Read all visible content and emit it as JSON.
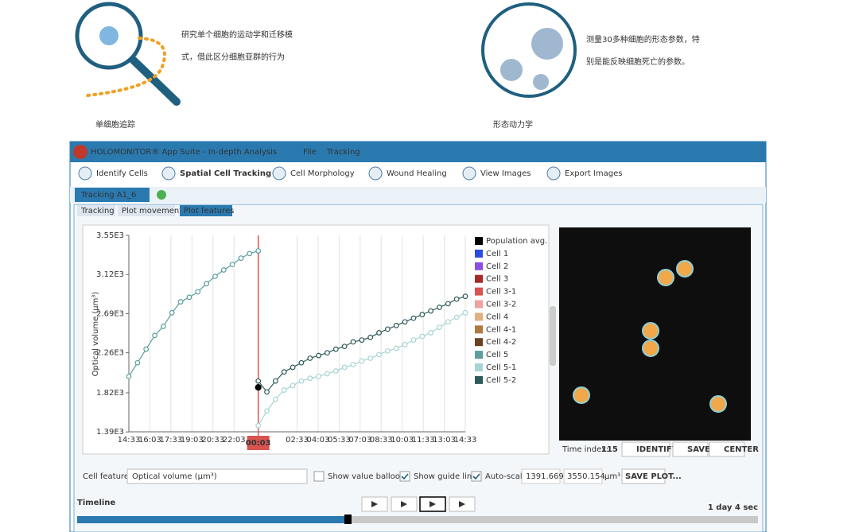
{
  "intro": {
    "left_text": [
      "研究单个细胞的运动学和迁移模",
      "式，借此区分细胞亚群的行为"
    ],
    "left_label": "单细胞追踪",
    "right_text": [
      "测量30多种细胞的形态参数，特",
      "别是能反映细胞死亡的参数。"
    ],
    "right_label": "形态动力学"
  },
  "app": {
    "title": "HOLOMONITOR® App Suite - In-depth Analysis",
    "menu": [
      "File",
      "Tracking"
    ],
    "toolbar": [
      "Identify Cells",
      "Spatial Cell Tracking",
      "Cell Morphology",
      "Wound Healing",
      "View Images",
      "Export Images"
    ],
    "doc_tab": "Tracking A1_6",
    "subtabs": [
      "Tracking",
      "Plot movement",
      "Plot features"
    ],
    "time_index_label": "Time index:",
    "time_index": "115",
    "image_buttons": [
      "IDENTIFY",
      "SAVE..",
      "CENTER"
    ],
    "cell_feature_label": "Cell feature:",
    "cell_feature": "Optical volume (µm³)",
    "checkboxes": [
      "Show value balloons",
      "Show guide line",
      "Auto-scale"
    ],
    "unit": "µm³",
    "save_plot": "SAVE PLOT...",
    "timeline_label": "Timeline",
    "duration": "1 day 4 sec"
  },
  "chart_data": {
    "type": "scatter",
    "y_label": "Optical volume (µm³)",
    "cursor_label": "00:03",
    "xticks": [
      "14:33",
      "16:03",
      "17:33",
      "19:03",
      "20:33",
      "22:03",
      null,
      null,
      "02:33",
      "04:03",
      "05:33",
      "07:03",
      "08:33",
      "10:03",
      "11:33",
      "13:03",
      "14:33"
    ],
    "ylim": [
      1391.669,
      3550.154
    ],
    "yticks": [
      {
        "value": 1390,
        "label": "1.39E3"
      },
      {
        "value": 1820,
        "label": "1.82E3"
      },
      {
        "value": 2260,
        "label": "2.26E3"
      },
      {
        "value": 2690,
        "label": "2.69E3"
      },
      {
        "value": 3120,
        "label": "3.12E3"
      },
      {
        "value": 3550,
        "label": "3.55E3"
      }
    ],
    "series": [
      {
        "name": "Population avg.",
        "color": "#000000",
        "values": [
          null,
          null,
          null,
          null,
          null,
          null,
          null,
          null,
          null,
          null,
          null,
          null,
          null,
          null,
          null,
          1880,
          null,
          null,
          null,
          null,
          null,
          null,
          null,
          null,
          null,
          null,
          null,
          null,
          null,
          null,
          null,
          null,
          null,
          null,
          null,
          null,
          null,
          null,
          null,
          null
        ]
      },
      {
        "name": "Cell 1",
        "color": "#2a4de0",
        "values": []
      },
      {
        "name": "Cell 2",
        "color": "#8a4fe0",
        "values": []
      },
      {
        "name": "Cell 3",
        "color": "#a52a2a",
        "values": []
      },
      {
        "name": "Cell 3-1",
        "color": "#d9534f",
        "values": []
      },
      {
        "name": "Cell 3-2",
        "color": "#f0a0a0",
        "values": []
      },
      {
        "name": "Cell 4",
        "color": "#e0b080",
        "values": []
      },
      {
        "name": "Cell 4-1",
        "color": "#b07a40",
        "values": []
      },
      {
        "name": "Cell 4-2",
        "color": "#6b4020",
        "values": []
      },
      {
        "name": "Cell 5",
        "color": "#5a9e9e",
        "values": [
          2000,
          2150,
          2300,
          2450,
          2550,
          2700,
          2820,
          2870,
          2930,
          3020,
          3100,
          3170,
          3230,
          3300,
          3350,
          3380,
          null,
          null,
          null,
          null,
          null,
          null,
          null,
          null,
          null,
          null,
          null,
          null,
          null,
          null,
          null,
          null,
          null,
          null,
          null,
          null,
          null,
          null,
          null,
          null
        ]
      },
      {
        "name": "Cell 5-1",
        "color": "#a8d4d4",
        "values": [
          null,
          null,
          null,
          null,
          null,
          null,
          null,
          null,
          null,
          null,
          null,
          null,
          null,
          null,
          null,
          1460,
          1620,
          1750,
          1850,
          1900,
          1950,
          1980,
          2000,
          2030,
          2060,
          2100,
          2130,
          2170,
          2200,
          2240,
          2280,
          2310,
          2350,
          2400,
          2440,
          2480,
          2540,
          2600,
          2650,
          2700
        ]
      },
      {
        "name": "Cell 5-2",
        "color": "#2f5a5a",
        "values": [
          null,
          null,
          null,
          null,
          null,
          null,
          null,
          null,
          null,
          null,
          null,
          null,
          null,
          null,
          null,
          1950,
          1830,
          1950,
          2050,
          2100,
          2150,
          2200,
          2230,
          2260,
          2300,
          2330,
          2380,
          2400,
          2430,
          2480,
          2520,
          2560,
          2600,
          2640,
          2680,
          2720,
          2760,
          2800,
          2850,
          2880
        ]
      }
    ]
  }
}
